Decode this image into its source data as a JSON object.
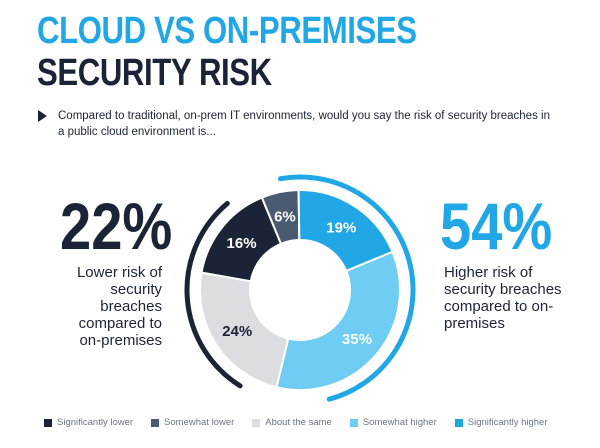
{
  "header": {
    "title_line1": "CLOUD VS ON-PREMISES",
    "title_line2": "SECURITY RISK",
    "question": "Compared to traditional, on-prem IT environments, would you say the risk of security breaches in a public cloud environment is..."
  },
  "summary": {
    "left_value": "22%",
    "left_text": "Lower risk of security breaches compared to on-premises",
    "right_value": "54%",
    "right_text": "Higher risk of security breaches compared to on-premises"
  },
  "colors": {
    "significantly_lower": "#1b2437",
    "somewhat_lower": "#4a5a70",
    "about_same": "#dcdde0",
    "somewhat_higher": "#6fcdf3",
    "significantly_higher": "#22a7e6",
    "arc_dark": "#1b2437",
    "arc_blue": "#22a7e6"
  },
  "chart_data": {
    "type": "pie",
    "style": "donut",
    "title": "",
    "categories": [
      "Significantly lower",
      "Somewhat lower",
      "Significantly higher",
      "Somewhat higher",
      "About the same"
    ],
    "values": [
      16,
      6,
      19,
      35,
      24
    ],
    "labels": [
      "16%",
      "6%",
      "19%",
      "35%",
      "24%"
    ],
    "legend_order": [
      "Significantly lower",
      "Somewhat lower",
      "About the same",
      "Somewhat higher",
      "Significantly higher"
    ],
    "legend_placement": "bottom"
  }
}
